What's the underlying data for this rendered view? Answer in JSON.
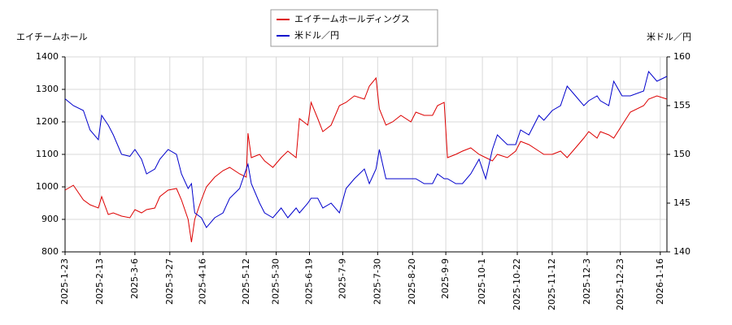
{
  "chart_data": {
    "type": "line",
    "y_label": "エイチームホール",
    "y2_label": "米ドル／円",
    "x": [
      "2025-01-23",
      "2025-01-28",
      "2025-02-03",
      "2025-02-07",
      "2025-02-12",
      "2025-02-14",
      "2025-02-18",
      "2025-02-21",
      "2025-02-26",
      "2025-03-03",
      "2025-03-06",
      "2025-03-10",
      "2025-03-13",
      "2025-03-18",
      "2025-03-21",
      "2025-03-26",
      "2025-03-31",
      "2025-04-03",
      "2025-04-07",
      "2025-04-09",
      "2025-04-11",
      "2025-04-15",
      "2025-04-18",
      "2025-04-23",
      "2025-04-28",
      "2025-05-02",
      "2025-05-08",
      "2025-05-12",
      "2025-05-13",
      "2025-05-15",
      "2025-05-20",
      "2025-05-23",
      "2025-05-28",
      "2025-06-02",
      "2025-06-06",
      "2025-06-11",
      "2025-06-13",
      "2025-06-18",
      "2025-06-20",
      "2025-06-24",
      "2025-06-27",
      "2025-07-02",
      "2025-07-07",
      "2025-07-11",
      "2025-07-16",
      "2025-07-22",
      "2025-07-25",
      "2025-07-29",
      "2025-07-31",
      "2025-08-04",
      "2025-08-08",
      "2025-08-13",
      "2025-08-19",
      "2025-08-22",
      "2025-08-27",
      "2025-09-01",
      "2025-09-04",
      "2025-09-08",
      "2025-09-10",
      "2025-09-15",
      "2025-09-19",
      "2025-09-24",
      "2025-09-29",
      "2025-10-03",
      "2025-10-07",
      "2025-10-10",
      "2025-10-16",
      "2025-10-21",
      "2025-10-24",
      "2025-10-29",
      "2025-11-04",
      "2025-11-07",
      "2025-11-12",
      "2025-11-17",
      "2025-11-21",
      "2025-11-26",
      "2025-12-01",
      "2025-12-04",
      "2025-12-09",
      "2025-12-11",
      "2025-12-16",
      "2025-12-19",
      "2025-12-24",
      "2025-12-29",
      "2026-01-06",
      "2026-01-09",
      "2026-01-14",
      "2026-01-20"
    ],
    "series": [
      {
        "name": "エイチームホールディングス",
        "color": "#dd0000",
        "axis": "y",
        "values": [
          990,
          1005,
          960,
          945,
          935,
          970,
          915,
          920,
          910,
          905,
          930,
          920,
          930,
          935,
          970,
          990,
          995,
          960,
          900,
          830,
          900,
          960,
          1000,
          1030,
          1050,
          1060,
          1040,
          1030,
          1165,
          1090,
          1100,
          1080,
          1060,
          1090,
          1110,
          1090,
          1210,
          1190,
          1260,
          1210,
          1170,
          1190,
          1250,
          1260,
          1280,
          1270,
          1310,
          1335,
          1240,
          1190,
          1200,
          1220,
          1200,
          1230,
          1220,
          1220,
          1250,
          1260,
          1090,
          1100,
          1110,
          1120,
          1100,
          1090,
          1080,
          1100,
          1090,
          1110,
          1140,
          1130,
          1110,
          1100,
          1100,
          1110,
          1090,
          1120,
          1150,
          1170,
          1150,
          1170,
          1160,
          1150,
          1190,
          1230,
          1250,
          1270,
          1280,
          1270
        ]
      },
      {
        "name": "米ドル／円",
        "color": "#0000cc",
        "axis": "y2",
        "values": [
          155.7,
          155,
          154.5,
          152.5,
          151.5,
          154,
          153,
          152,
          150,
          149.8,
          150.5,
          149.5,
          148,
          148.5,
          149.5,
          150.5,
          150,
          148,
          146.5,
          147,
          144,
          143.5,
          142.5,
          143.5,
          144,
          145.5,
          146.5,
          148.5,
          149,
          147,
          145,
          144,
          143.5,
          144.5,
          143.5,
          144.5,
          144,
          145,
          145.5,
          145.5,
          144.5,
          145,
          144,
          146.5,
          147.5,
          148.5,
          147,
          148.5,
          150.5,
          147.5,
          147.5,
          147.5,
          147.5,
          147.5,
          147,
          147,
          148,
          147.5,
          147.5,
          147,
          147,
          148,
          149.5,
          147.5,
          150.5,
          152,
          151,
          151,
          152.5,
          152,
          154,
          153.5,
          154.5,
          155,
          157,
          156,
          155,
          155.5,
          156,
          155.5,
          155,
          157.5,
          156,
          156,
          156.5,
          158.5,
          157.5,
          158
        ]
      }
    ],
    "xlim": [
      "2025-01-23",
      "2026-01-20"
    ],
    "xticks": [
      {
        "value": "2025-01-23",
        "label": "2025-1-23"
      },
      {
        "value": "2025-02-13",
        "label": "2025-2-13"
      },
      {
        "value": "2025-03-06",
        "label": "2025-3-6"
      },
      {
        "value": "2025-03-27",
        "label": "2025-3-27"
      },
      {
        "value": "2025-04-16",
        "label": "2025-4-16"
      },
      {
        "value": "2025-05-12",
        "label": "2025-5-12"
      },
      {
        "value": "2025-05-30",
        "label": "2025-5-30"
      },
      {
        "value": "2025-06-19",
        "label": "2025-6-19"
      },
      {
        "value": "2025-07-09",
        "label": "2025-7-9"
      },
      {
        "value": "2025-07-30",
        "label": "2025-7-30"
      },
      {
        "value": "2025-08-20",
        "label": "2025-8-20"
      },
      {
        "value": "2025-09-09",
        "label": "2025-9-9"
      },
      {
        "value": "2025-10-01",
        "label": "2025-10-1"
      },
      {
        "value": "2025-10-22",
        "label": "2025-10-22"
      },
      {
        "value": "2025-11-12",
        "label": "2025-11-12"
      },
      {
        "value": "2025-12-03",
        "label": "2025-12-3"
      },
      {
        "value": "2025-12-23",
        "label": "2025-12-23"
      },
      {
        "value": "2026-01-16",
        "label": "2026-1-16"
      }
    ],
    "ylim": [
      800,
      1400
    ],
    "yticks": [
      800,
      900,
      1000,
      1100,
      1200,
      1300,
      1400
    ],
    "y2lim": [
      140,
      160
    ],
    "y2ticks": [
      140,
      145,
      150,
      155,
      160
    ],
    "grid": true
  }
}
